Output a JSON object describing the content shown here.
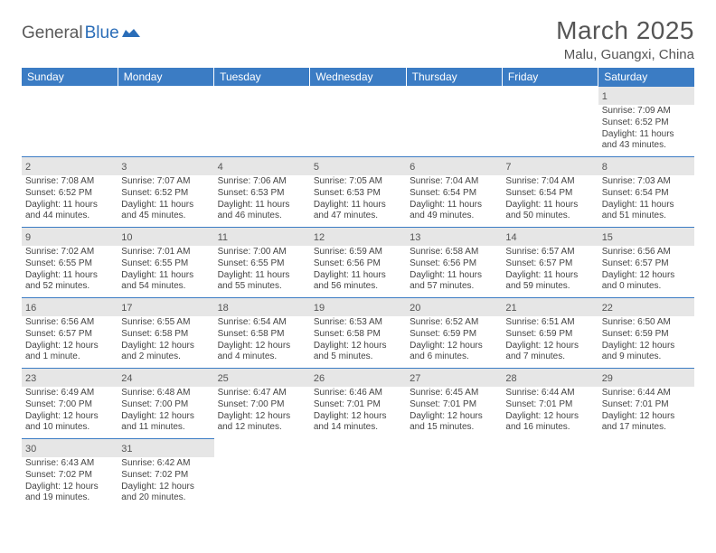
{
  "brand": {
    "part1": "General",
    "part2": "Blue"
  },
  "title": "March 2025",
  "location": "Malu, Guangxi, China",
  "colors": {
    "header_bg": "#3b7cc4",
    "header_text": "#ffffff",
    "daynum_bg": "#e6e6e6",
    "border": "#3b7cc4",
    "brand_gray": "#5a5a5a",
    "brand_blue": "#2a6db8",
    "text": "#444444"
  },
  "day_headers": [
    "Sunday",
    "Monday",
    "Tuesday",
    "Wednesday",
    "Thursday",
    "Friday",
    "Saturday"
  ],
  "weeks": [
    [
      null,
      null,
      null,
      null,
      null,
      null,
      {
        "n": "1",
        "sr": "Sunrise: 7:09 AM",
        "ss": "Sunset: 6:52 PM",
        "d1": "Daylight: 11 hours",
        "d2": "and 43 minutes."
      }
    ],
    [
      {
        "n": "2",
        "sr": "Sunrise: 7:08 AM",
        "ss": "Sunset: 6:52 PM",
        "d1": "Daylight: 11 hours",
        "d2": "and 44 minutes."
      },
      {
        "n": "3",
        "sr": "Sunrise: 7:07 AM",
        "ss": "Sunset: 6:52 PM",
        "d1": "Daylight: 11 hours",
        "d2": "and 45 minutes."
      },
      {
        "n": "4",
        "sr": "Sunrise: 7:06 AM",
        "ss": "Sunset: 6:53 PM",
        "d1": "Daylight: 11 hours",
        "d2": "and 46 minutes."
      },
      {
        "n": "5",
        "sr": "Sunrise: 7:05 AM",
        "ss": "Sunset: 6:53 PM",
        "d1": "Daylight: 11 hours",
        "d2": "and 47 minutes."
      },
      {
        "n": "6",
        "sr": "Sunrise: 7:04 AM",
        "ss": "Sunset: 6:54 PM",
        "d1": "Daylight: 11 hours",
        "d2": "and 49 minutes."
      },
      {
        "n": "7",
        "sr": "Sunrise: 7:04 AM",
        "ss": "Sunset: 6:54 PM",
        "d1": "Daylight: 11 hours",
        "d2": "and 50 minutes."
      },
      {
        "n": "8",
        "sr": "Sunrise: 7:03 AM",
        "ss": "Sunset: 6:54 PM",
        "d1": "Daylight: 11 hours",
        "d2": "and 51 minutes."
      }
    ],
    [
      {
        "n": "9",
        "sr": "Sunrise: 7:02 AM",
        "ss": "Sunset: 6:55 PM",
        "d1": "Daylight: 11 hours",
        "d2": "and 52 minutes."
      },
      {
        "n": "10",
        "sr": "Sunrise: 7:01 AM",
        "ss": "Sunset: 6:55 PM",
        "d1": "Daylight: 11 hours",
        "d2": "and 54 minutes."
      },
      {
        "n": "11",
        "sr": "Sunrise: 7:00 AM",
        "ss": "Sunset: 6:55 PM",
        "d1": "Daylight: 11 hours",
        "d2": "and 55 minutes."
      },
      {
        "n": "12",
        "sr": "Sunrise: 6:59 AM",
        "ss": "Sunset: 6:56 PM",
        "d1": "Daylight: 11 hours",
        "d2": "and 56 minutes."
      },
      {
        "n": "13",
        "sr": "Sunrise: 6:58 AM",
        "ss": "Sunset: 6:56 PM",
        "d1": "Daylight: 11 hours",
        "d2": "and 57 minutes."
      },
      {
        "n": "14",
        "sr": "Sunrise: 6:57 AM",
        "ss": "Sunset: 6:57 PM",
        "d1": "Daylight: 11 hours",
        "d2": "and 59 minutes."
      },
      {
        "n": "15",
        "sr": "Sunrise: 6:56 AM",
        "ss": "Sunset: 6:57 PM",
        "d1": "Daylight: 12 hours",
        "d2": "and 0 minutes."
      }
    ],
    [
      {
        "n": "16",
        "sr": "Sunrise: 6:56 AM",
        "ss": "Sunset: 6:57 PM",
        "d1": "Daylight: 12 hours",
        "d2": "and 1 minute."
      },
      {
        "n": "17",
        "sr": "Sunrise: 6:55 AM",
        "ss": "Sunset: 6:58 PM",
        "d1": "Daylight: 12 hours",
        "d2": "and 2 minutes."
      },
      {
        "n": "18",
        "sr": "Sunrise: 6:54 AM",
        "ss": "Sunset: 6:58 PM",
        "d1": "Daylight: 12 hours",
        "d2": "and 4 minutes."
      },
      {
        "n": "19",
        "sr": "Sunrise: 6:53 AM",
        "ss": "Sunset: 6:58 PM",
        "d1": "Daylight: 12 hours",
        "d2": "and 5 minutes."
      },
      {
        "n": "20",
        "sr": "Sunrise: 6:52 AM",
        "ss": "Sunset: 6:59 PM",
        "d1": "Daylight: 12 hours",
        "d2": "and 6 minutes."
      },
      {
        "n": "21",
        "sr": "Sunrise: 6:51 AM",
        "ss": "Sunset: 6:59 PM",
        "d1": "Daylight: 12 hours",
        "d2": "and 7 minutes."
      },
      {
        "n": "22",
        "sr": "Sunrise: 6:50 AM",
        "ss": "Sunset: 6:59 PM",
        "d1": "Daylight: 12 hours",
        "d2": "and 9 minutes."
      }
    ],
    [
      {
        "n": "23",
        "sr": "Sunrise: 6:49 AM",
        "ss": "Sunset: 7:00 PM",
        "d1": "Daylight: 12 hours",
        "d2": "and 10 minutes."
      },
      {
        "n": "24",
        "sr": "Sunrise: 6:48 AM",
        "ss": "Sunset: 7:00 PM",
        "d1": "Daylight: 12 hours",
        "d2": "and 11 minutes."
      },
      {
        "n": "25",
        "sr": "Sunrise: 6:47 AM",
        "ss": "Sunset: 7:00 PM",
        "d1": "Daylight: 12 hours",
        "d2": "and 12 minutes."
      },
      {
        "n": "26",
        "sr": "Sunrise: 6:46 AM",
        "ss": "Sunset: 7:01 PM",
        "d1": "Daylight: 12 hours",
        "d2": "and 14 minutes."
      },
      {
        "n": "27",
        "sr": "Sunrise: 6:45 AM",
        "ss": "Sunset: 7:01 PM",
        "d1": "Daylight: 12 hours",
        "d2": "and 15 minutes."
      },
      {
        "n": "28",
        "sr": "Sunrise: 6:44 AM",
        "ss": "Sunset: 7:01 PM",
        "d1": "Daylight: 12 hours",
        "d2": "and 16 minutes."
      },
      {
        "n": "29",
        "sr": "Sunrise: 6:44 AM",
        "ss": "Sunset: 7:01 PM",
        "d1": "Daylight: 12 hours",
        "d2": "and 17 minutes."
      }
    ],
    [
      {
        "n": "30",
        "sr": "Sunrise: 6:43 AM",
        "ss": "Sunset: 7:02 PM",
        "d1": "Daylight: 12 hours",
        "d2": "and 19 minutes."
      },
      {
        "n": "31",
        "sr": "Sunrise: 6:42 AM",
        "ss": "Sunset: 7:02 PM",
        "d1": "Daylight: 12 hours",
        "d2": "and 20 minutes."
      },
      null,
      null,
      null,
      null,
      null
    ]
  ]
}
